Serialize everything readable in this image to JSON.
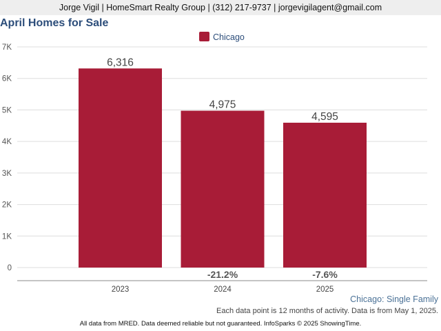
{
  "header": {
    "contact": "Jorge Vigil | HomeSmart Realty Group | (312) 217-9737 | jorgevigilagent@gmail.com"
  },
  "chart_data": {
    "type": "bar",
    "title": "April Homes for Sale",
    "categories": [
      "2023",
      "2024",
      "2025"
    ],
    "series": [
      {
        "name": "Chicago",
        "values": [
          6316,
          4975,
          4595
        ],
        "color": "#a81c37"
      }
    ],
    "value_labels": [
      "6,316",
      "4,975",
      "4,595"
    ],
    "change_labels": [
      "",
      "-21.2%",
      "-7.6%"
    ],
    "ylim": [
      0,
      7000
    ],
    "yticks": [
      0,
      1000,
      2000,
      3000,
      4000,
      5000,
      6000,
      7000
    ],
    "ytick_labels": [
      "0",
      "1K",
      "2K",
      "3K",
      "4K",
      "5K",
      "6K",
      "7K"
    ],
    "grid": true,
    "legend_position": "top-center"
  },
  "subtitle_right": "Chicago: Single Family",
  "note": "Each data point is 12 months of activity. Data is from May 1, 2025.",
  "footer": "All data from MRED. Data deemed reliable but not guaranteed. InfoSparks © 2025 ShowingTime."
}
